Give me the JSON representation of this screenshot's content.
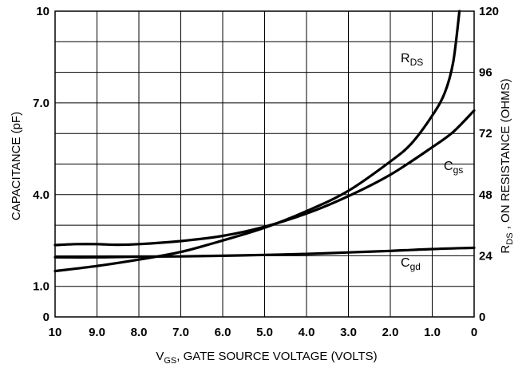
{
  "chart_data": {
    "type": "line",
    "x_title": {
      "main": "V",
      "sub": "GS",
      "rest": ", GATE SOURCE VOLTAGE (VOLTS)"
    },
    "y_left_title": "CAPACITANCE (pF)",
    "y_right_title": {
      "main": "R",
      "sub": "DS",
      "rest": " , ON RESISTANCE (OHMS)"
    },
    "x_range": [
      10,
      0
    ],
    "x_reversed": true,
    "y_left_range": [
      0,
      10
    ],
    "y_right_range": [
      0,
      120
    ],
    "grid": true,
    "x_ticks": [
      {
        "value": 10,
        "label": "10"
      },
      {
        "value": 9,
        "label": "9.0"
      },
      {
        "value": 8,
        "label": "8.0"
      },
      {
        "value": 7,
        "label": "7.0"
      },
      {
        "value": 6,
        "label": "6.0"
      },
      {
        "value": 5,
        "label": "5.0"
      },
      {
        "value": 4,
        "label": "4.0"
      },
      {
        "value": 3,
        "label": "3.0"
      },
      {
        "value": 2,
        "label": "2.0"
      },
      {
        "value": 1,
        "label": "1.0"
      },
      {
        "value": 0,
        "label": "0"
      }
    ],
    "y_left_ticks": [
      {
        "value": 0,
        "label": "0"
      },
      {
        "value": 1,
        "label": "1.0"
      },
      {
        "value": 4,
        "label": "4.0"
      },
      {
        "value": 7,
        "label": "7.0"
      },
      {
        "value": 10,
        "label": "10"
      }
    ],
    "y_right_ticks": [
      {
        "value": 0,
        "label": "0"
      },
      {
        "value": 24,
        "label": "24"
      },
      {
        "value": 48,
        "label": "48"
      },
      {
        "value": 72,
        "label": "72"
      },
      {
        "value": 96,
        "label": "96"
      },
      {
        "value": 120,
        "label": "120"
      }
    ],
    "series": [
      {
        "name": "R_DS",
        "label": {
          "main": "R",
          "sub": "DS"
        },
        "axis": "right",
        "x": [
          10,
          9,
          8,
          7,
          6,
          5,
          4,
          3,
          2,
          1.5,
          1,
          0.7,
          0.5,
          0.35
        ],
        "y": [
          18,
          20,
          22.5,
          25.5,
          30,
          35,
          41.5,
          49.5,
          61,
          68,
          79,
          88,
          100,
          120
        ]
      },
      {
        "name": "C_gs",
        "label": {
          "main": "C",
          "sub": "gs"
        },
        "axis": "left",
        "x": [
          10,
          9.5,
          9,
          8.5,
          8,
          7,
          6,
          5,
          4,
          3,
          2,
          1,
          0.5,
          0
        ],
        "y": [
          2.35,
          2.38,
          2.38,
          2.36,
          2.38,
          2.48,
          2.65,
          2.95,
          3.38,
          3.95,
          4.65,
          5.55,
          6.05,
          6.75
        ]
      },
      {
        "name": "C_gd",
        "label": {
          "main": "C",
          "sub": "gd"
        },
        "axis": "left",
        "x": [
          10,
          9,
          8,
          7,
          6,
          5,
          4,
          3,
          2,
          1,
          0
        ],
        "y": [
          1.95,
          1.95,
          1.97,
          1.98,
          2.0,
          2.03,
          2.06,
          2.11,
          2.16,
          2.22,
          2.26
        ]
      }
    ]
  }
}
